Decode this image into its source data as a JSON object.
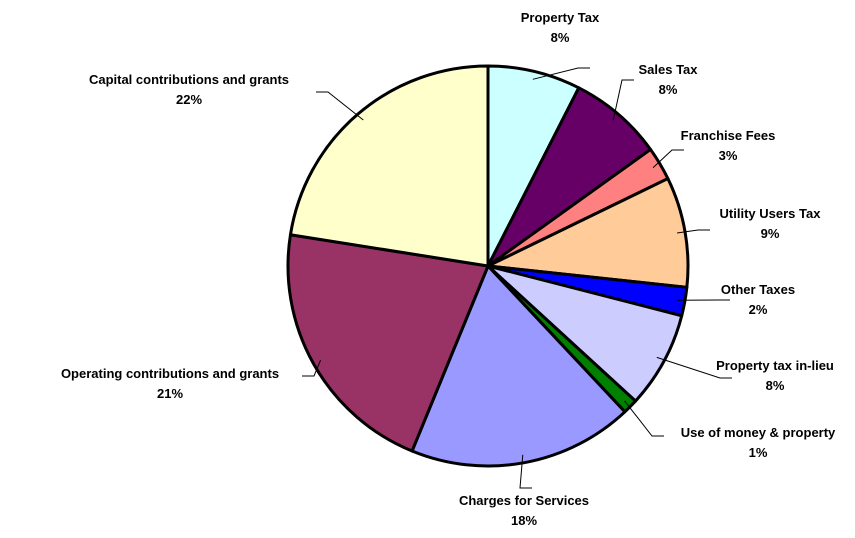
{
  "chart_data": {
    "type": "pie",
    "title": "",
    "slices": [
      {
        "label": "Property Tax",
        "pct_label": "8%",
        "value": 7.5,
        "color": "#ccffff"
      },
      {
        "label": "Sales Tax",
        "pct_label": "8%",
        "value": 7.6,
        "color": "#660066"
      },
      {
        "label": "Franchise Fees",
        "pct_label": "3%",
        "value": 2.7,
        "color": "#ff8080"
      },
      {
        "label": "Utility Users Tax",
        "pct_label": "9%",
        "value": 8.9,
        "color": "#ffcc99"
      },
      {
        "label": "Other Taxes",
        "pct_label": "2%",
        "value": 2.3,
        "color": "#0000ff"
      },
      {
        "label": "Property tax in-lieu",
        "pct_label": "8%",
        "value": 7.8,
        "color": "#ccccff"
      },
      {
        "label": "Use of money & property",
        "pct_label": "1%",
        "value": 1.2,
        "color": "#008000"
      },
      {
        "label": "Charges for Services",
        "pct_label": "18%",
        "value": 18.2,
        "color": "#9999ff"
      },
      {
        "label": "Operating  contributions and grants",
        "pct_label": "21%",
        "value": 21.3,
        "color": "#993366"
      },
      {
        "label": "Capital contributions and grants",
        "pct_label": "22%",
        "value": 22.5,
        "color": "#ffffcc"
      }
    ],
    "legend": "none",
    "grid": false
  }
}
